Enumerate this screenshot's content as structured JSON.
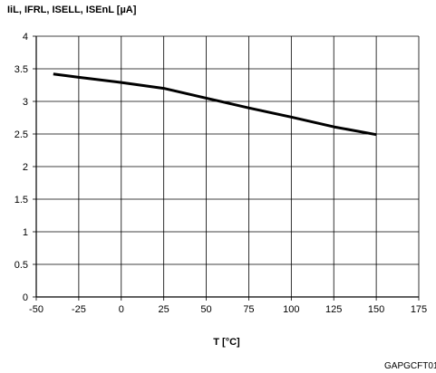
{
  "chart_data": {
    "type": "line",
    "ylabel": "IiL, IFRL, ISELL, ISEnL [µA]",
    "xlabel": "T [°C]",
    "xlim": [
      -50,
      175
    ],
    "ylim": [
      0,
      4
    ],
    "x_ticks": [
      -50,
      -25,
      0,
      25,
      50,
      75,
      100,
      125,
      150,
      175
    ],
    "y_ticks": [
      0,
      0.5,
      1,
      1.5,
      2,
      2.5,
      3,
      3.5,
      4
    ],
    "x_tick_labels": [
      "-50",
      "-25",
      "0",
      "25",
      "50",
      "75",
      "100",
      "125",
      "150",
      "175"
    ],
    "y_tick_labels": [
      "0",
      "0.5",
      "1",
      "1.5",
      "2",
      "2.5",
      "3",
      "3.5",
      "4"
    ],
    "grid": true,
    "series": [
      {
        "x": [
          -40,
          -25,
          0,
          25,
          50,
          75,
          100,
          125,
          150
        ],
        "y": [
          3.42,
          3.37,
          3.29,
          3.2,
          3.05,
          2.9,
          2.76,
          2.61,
          2.49
        ]
      }
    ],
    "code": "GAPGCFT01"
  }
}
